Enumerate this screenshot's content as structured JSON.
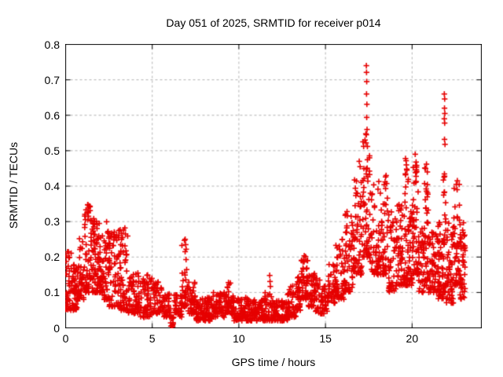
{
  "chart_data": {
    "type": "scatter",
    "title": "Day 051 of 2025, SRMTID for receiver p014",
    "xlabel": "GPS time / hours",
    "ylabel": "SRMTID / TECUs",
    "xlim": [
      0,
      24
    ],
    "ylim": [
      0,
      0.8
    ],
    "xticks": [
      0,
      5,
      10,
      15,
      20
    ],
    "xtick_labels": [
      "0",
      "5",
      "10",
      "15",
      "20"
    ],
    "yticks": [
      0,
      0.1,
      0.2,
      0.3,
      0.4,
      0.5,
      0.6,
      0.7,
      0.8
    ],
    "ytick_labels": [
      "0",
      "0.1",
      "0.2",
      "0.3",
      "0.4",
      "0.5",
      "0.6",
      "0.7",
      "0.8"
    ],
    "grid": true,
    "grid_style": "dashed",
    "legend": "none",
    "marker": "plus",
    "marker_color": "#e60000",
    "grid_color": "#b4b4b4",
    "border_color": "#000000",
    "background_color": "#ffffff",
    "series_name": "SRMTID",
    "point_generation": {
      "seed": 51,
      "comment_bins": "each bin = [x_start_hr, x_end_hr, n_points, y_min_TECU, y_max_TECU, low_bias_power] read from the plotted cloud",
      "bins": [
        [
          0.0,
          0.35,
          40,
          0.05,
          0.22,
          1.5
        ],
        [
          0.35,
          0.7,
          50,
          0.05,
          0.18,
          1.4
        ],
        [
          0.7,
          1.1,
          45,
          0.08,
          0.26,
          1.6
        ],
        [
          1.1,
          1.45,
          45,
          0.1,
          0.35,
          2.0
        ],
        [
          1.45,
          1.8,
          50,
          0.1,
          0.31,
          1.6
        ],
        [
          1.8,
          2.2,
          55,
          0.1,
          0.3,
          1.6
        ],
        [
          2.2,
          2.5,
          40,
          0.08,
          0.3,
          1.9
        ],
        [
          2.5,
          3.2,
          80,
          0.06,
          0.28,
          1.8
        ],
        [
          3.2,
          3.6,
          45,
          0.05,
          0.28,
          2.1
        ],
        [
          3.6,
          4.2,
          55,
          0.04,
          0.16,
          1.5
        ],
        [
          4.2,
          5.0,
          70,
          0.03,
          0.15,
          1.5
        ],
        [
          5.0,
          5.6,
          50,
          0.04,
          0.13,
          1.4
        ],
        [
          5.6,
          6.05,
          40,
          0.03,
          0.1,
          1.4
        ],
        [
          6.05,
          6.25,
          14,
          0.003,
          0.03,
          1.6
        ],
        [
          6.25,
          6.7,
          35,
          0.03,
          0.1,
          1.4
        ],
        [
          6.7,
          7.05,
          35,
          0.06,
          0.25,
          2.0
        ],
        [
          7.05,
          7.5,
          40,
          0.04,
          0.13,
          1.6
        ],
        [
          7.5,
          8.5,
          90,
          0.02,
          0.09,
          1.4
        ],
        [
          8.5,
          9.2,
          60,
          0.03,
          0.1,
          1.4
        ],
        [
          9.2,
          9.6,
          40,
          0.04,
          0.13,
          1.7
        ],
        [
          9.6,
          10.5,
          85,
          0.02,
          0.09,
          1.4
        ],
        [
          10.5,
          11.5,
          90,
          0.02,
          0.08,
          1.3
        ],
        [
          11.5,
          11.9,
          35,
          0.02,
          0.1,
          1.5
        ],
        [
          11.9,
          12.8,
          80,
          0.02,
          0.08,
          1.3
        ],
        [
          12.8,
          13.3,
          50,
          0.03,
          0.12,
          1.5
        ],
        [
          13.3,
          13.6,
          35,
          0.05,
          0.15,
          1.5
        ],
        [
          13.6,
          14.0,
          50,
          0.08,
          0.21,
          1.4
        ],
        [
          14.0,
          14.4,
          40,
          0.06,
          0.16,
          1.5
        ],
        [
          14.4,
          15.1,
          55,
          0.04,
          0.14,
          1.5
        ],
        [
          15.1,
          15.6,
          45,
          0.07,
          0.18,
          1.5
        ],
        [
          15.6,
          16.1,
          50,
          0.08,
          0.25,
          1.7
        ],
        [
          16.1,
          16.6,
          55,
          0.1,
          0.33,
          1.7
        ],
        [
          16.6,
          17.1,
          60,
          0.15,
          0.42,
          1.6
        ],
        [
          17.1,
          17.55,
          55,
          0.2,
          0.55,
          1.9
        ],
        [
          17.55,
          18.1,
          55,
          0.15,
          0.42,
          1.8
        ],
        [
          18.1,
          18.6,
          50,
          0.15,
          0.43,
          1.8
        ],
        [
          18.6,
          19.1,
          50,
          0.1,
          0.33,
          1.6
        ],
        [
          19.1,
          19.5,
          45,
          0.12,
          0.35,
          1.7
        ],
        [
          19.5,
          19.8,
          45,
          0.12,
          0.48,
          1.9
        ],
        [
          19.8,
          20.05,
          35,
          0.12,
          0.35,
          1.6
        ],
        [
          20.05,
          20.35,
          45,
          0.15,
          0.49,
          1.9
        ],
        [
          20.35,
          20.7,
          40,
          0.1,
          0.3,
          1.5
        ],
        [
          20.7,
          20.95,
          40,
          0.12,
          0.46,
          1.9
        ],
        [
          20.95,
          21.5,
          60,
          0.1,
          0.28,
          1.5
        ],
        [
          21.5,
          21.8,
          45,
          0.08,
          0.3,
          1.6
        ],
        [
          21.8,
          21.95,
          30,
          0.1,
          0.52,
          1.9
        ],
        [
          21.95,
          22.4,
          55,
          0.07,
          0.3,
          1.6
        ],
        [
          22.4,
          22.75,
          45,
          0.12,
          0.42,
          1.8
        ],
        [
          22.75,
          23.1,
          45,
          0.08,
          0.3,
          1.6
        ]
      ],
      "spike_points": [
        [
          17.36,
          0.74
        ],
        [
          17.37,
          0.721
        ],
        [
          17.38,
          0.695
        ],
        [
          17.37,
          0.66
        ],
        [
          17.39,
          0.631
        ],
        [
          17.38,
          0.594
        ],
        [
          17.4,
          0.56
        ],
        [
          17.36,
          0.545
        ],
        [
          17.42,
          0.512
        ],
        [
          21.86,
          0.66
        ],
        [
          21.88,
          0.646
        ],
        [
          21.87,
          0.62
        ],
        [
          21.89,
          0.605
        ],
        [
          21.86,
          0.59
        ],
        [
          21.88,
          0.578
        ],
        [
          21.87,
          0.532
        ],
        [
          21.9,
          0.518
        ],
        [
          1.29,
          0.347
        ],
        [
          1.31,
          0.338
        ],
        [
          1.3,
          0.327
        ],
        [
          1.32,
          0.315
        ],
        [
          1.28,
          0.305
        ],
        [
          11.78,
          0.148
        ],
        [
          11.8,
          0.131
        ],
        [
          11.82,
          0.117
        ],
        [
          9.4,
          0.128
        ],
        [
          19.62,
          0.478
        ],
        [
          19.67,
          0.46
        ],
        [
          19.7,
          0.445
        ],
        [
          20.18,
          0.49
        ],
        [
          20.23,
          0.468
        ],
        [
          20.26,
          0.442
        ],
        [
          20.83,
          0.462
        ],
        [
          20.88,
          0.44
        ],
        [
          22.55,
          0.405
        ],
        [
          22.6,
          0.39
        ],
        [
          18.44,
          0.412
        ],
        [
          18.47,
          0.393
        ],
        [
          18.5,
          0.43
        ],
        [
          6.9,
          0.25
        ],
        [
          6.93,
          0.235
        ],
        [
          6.96,
          0.222
        ],
        [
          3.42,
          0.282
        ],
        [
          3.45,
          0.265
        ],
        [
          2.95,
          0.262
        ],
        [
          3.05,
          0.255
        ],
        [
          16.95,
          0.47
        ],
        [
          17.0,
          0.455
        ]
      ]
    }
  }
}
